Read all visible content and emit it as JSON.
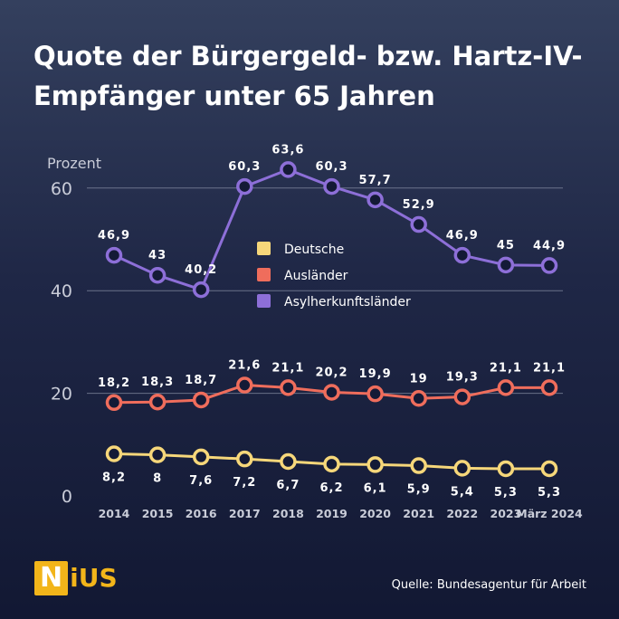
{
  "title_line1": "Quote der Bürgergeld- bzw. Hartz-IV-",
  "title_line2": "Empfänger unter 65 Jahren",
  "logo": {
    "first": "N",
    "rest": "iUS"
  },
  "source": "Quelle: Bundesagentur für Arbeit",
  "chart_data": {
    "type": "line",
    "ylabel": "Prozent",
    "yticks": [
      0,
      20,
      40,
      60
    ],
    "ylim": [
      0,
      67
    ],
    "grid": true,
    "legend_position": "center",
    "categories": [
      "2014",
      "2015",
      "2016",
      "2017",
      "2018",
      "2019",
      "2020",
      "2021",
      "2022",
      "2023",
      "März 2024"
    ],
    "series": [
      {
        "name": "Deutsche",
        "color": "#f6d77a",
        "values": [
          8.2,
          8,
          7.6,
          7.2,
          6.7,
          6.2,
          6.1,
          5.9,
          5.4,
          5.3,
          5.3
        ],
        "labels": [
          "8,2",
          "8",
          "7,6",
          "7,2",
          "6,7",
          "6,2",
          "6,1",
          "5,9",
          "5,4",
          "5,3",
          "5,3"
        ],
        "label_position": "below"
      },
      {
        "name": "Ausländer",
        "color": "#ef6d5c",
        "values": [
          18.2,
          18.3,
          18.7,
          21.6,
          21.1,
          20.2,
          19.9,
          19,
          19.3,
          21.1,
          21.1
        ],
        "labels": [
          "18,2",
          "18,3",
          "18,7",
          "21,6",
          "21,1",
          "20,2",
          "19,9",
          "19",
          "19,3",
          "21,1",
          "21,1"
        ],
        "label_position": "above"
      },
      {
        "name": "Asylherkunftsländer",
        "color": "#8d6fd8",
        "values": [
          46.9,
          43,
          40.2,
          60.3,
          63.6,
          60.3,
          57.7,
          52.9,
          46.9,
          45,
          44.9
        ],
        "labels": [
          "46,9",
          "43",
          "40,2",
          "60,3",
          "63,6",
          "60,3",
          "57,7",
          "52,9",
          "46,9",
          "45",
          "44,9"
        ],
        "label_position": "above"
      }
    ]
  }
}
